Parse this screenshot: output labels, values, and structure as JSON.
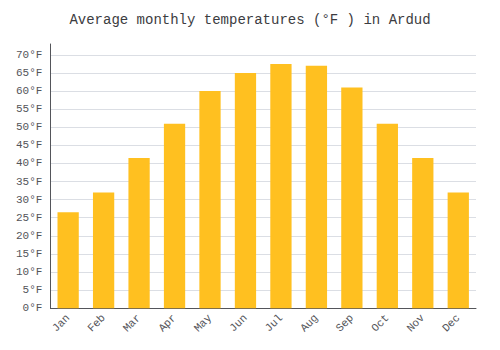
{
  "chart_data": {
    "type": "bar",
    "title": "Average monthly temperatures (°F ) in Ardud",
    "categories": [
      "Jan",
      "Feb",
      "Mar",
      "Apr",
      "May",
      "Jun",
      "Jul",
      "Aug",
      "Sep",
      "Oct",
      "Nov",
      "Dec"
    ],
    "values": [
      26.5,
      32.0,
      41.5,
      51.0,
      60.0,
      65.0,
      67.5,
      67.0,
      61.0,
      51.0,
      41.5,
      32.0
    ],
    "color": "#FFC020",
    "ylim": [
      0,
      73
    ],
    "yticks": [
      {
        "value": 0,
        "label": "0°F"
      },
      {
        "value": 5,
        "label": "5°F"
      },
      {
        "value": 10,
        "label": "10°F"
      },
      {
        "value": 15,
        "label": "15°F"
      },
      {
        "value": 20,
        "label": "20°F"
      },
      {
        "value": 25,
        "label": "25°F"
      },
      {
        "value": 30,
        "label": "30°F"
      },
      {
        "value": 35,
        "label": "35°F"
      },
      {
        "value": 40,
        "label": "40°F"
      },
      {
        "value": 45,
        "label": "45°F"
      },
      {
        "value": 50,
        "label": "50°F"
      },
      {
        "value": 55,
        "label": "55°F"
      },
      {
        "value": 60,
        "label": "60°F"
      },
      {
        "value": 65,
        "label": "65°F"
      },
      {
        "value": 70,
        "label": "70°F"
      }
    ],
    "grid": true
  }
}
